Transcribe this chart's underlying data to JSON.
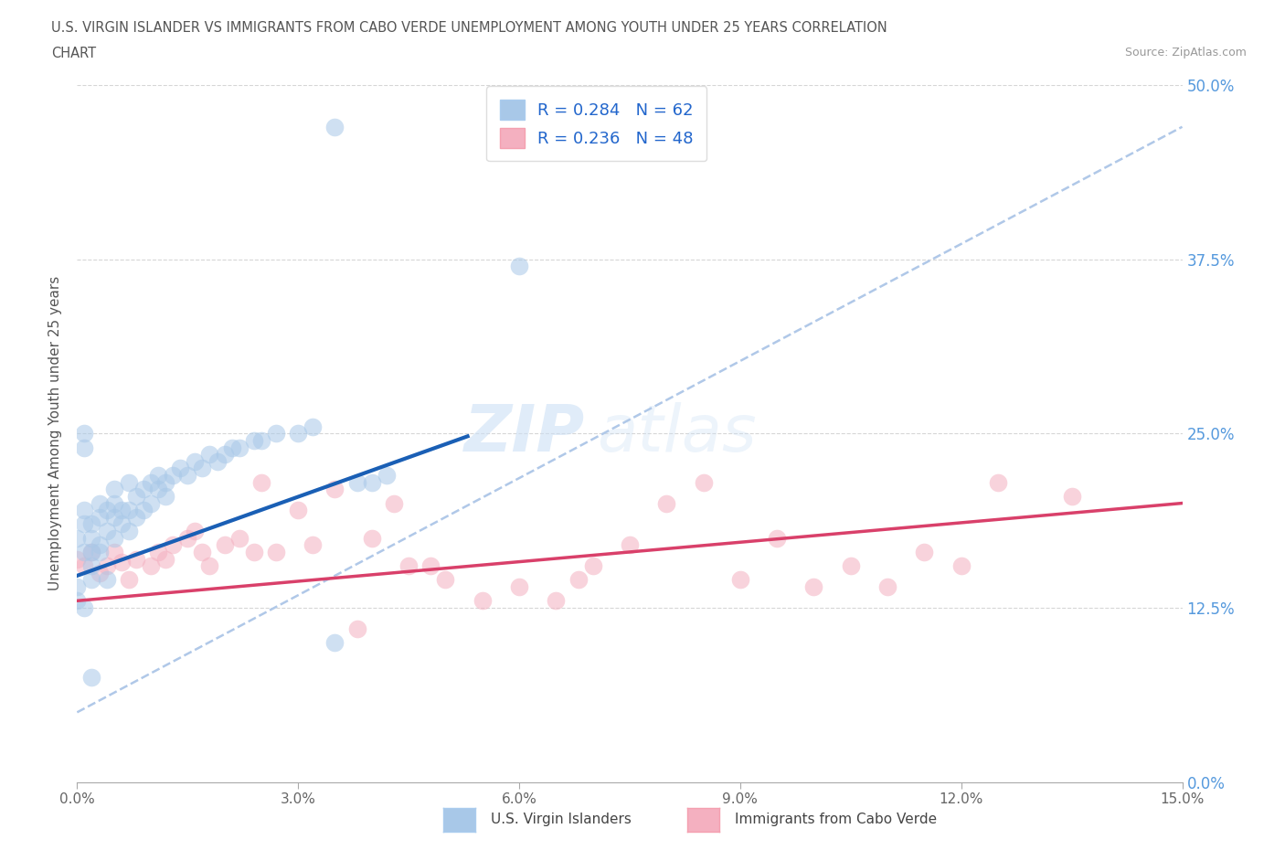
{
  "title_line1": "U.S. VIRGIN ISLANDER VS IMMIGRANTS FROM CABO VERDE UNEMPLOYMENT AMONG YOUTH UNDER 25 YEARS CORRELATION",
  "title_line2": "CHART",
  "source": "Source: ZipAtlas.com",
  "xtick_vals": [
    0.0,
    0.03,
    0.06,
    0.09,
    0.12,
    0.15
  ],
  "xtick_labels": [
    "0.0%",
    "3.0%",
    "6.0%",
    "9.0%",
    "12.0%",
    "15.0%"
  ],
  "ytick_vals": [
    0.0,
    0.125,
    0.25,
    0.375,
    0.5
  ],
  "ytick_labels": [
    "0.0%",
    "12.5%",
    "25.0%",
    "37.5%",
    "50.0%"
  ],
  "xlim": [
    0.0,
    0.15
  ],
  "ylim": [
    0.0,
    0.5
  ],
  "ylabel": "Unemployment Among Youth under 25 years",
  "legend_label1": "R = 0.284   N = 62",
  "legend_label2": "R = 0.236   N = 48",
  "bottom_label1": "U.S. Virgin Islanders",
  "bottom_label2": "Immigrants from Cabo Verde",
  "watermark_zip": "ZIP",
  "watermark_atlas": "atlas",
  "scatter_color_blue": "#a8c8e8",
  "scatter_color_pink": "#f4b0c0",
  "line_color_blue": "#1a5fb5",
  "line_color_pink": "#d9406a",
  "dashed_color": "#b0c8e8",
  "background_color": "#ffffff",
  "grid_color": "#cccccc",
  "blue_line_x": [
    0.0,
    0.053
  ],
  "blue_line_y": [
    0.148,
    0.248
  ],
  "pink_line_x": [
    0.0,
    0.15
  ],
  "pink_line_y": [
    0.13,
    0.2
  ],
  "dashed_line_x": [
    0.0,
    0.15
  ],
  "dashed_line_y": [
    0.05,
    0.47
  ]
}
